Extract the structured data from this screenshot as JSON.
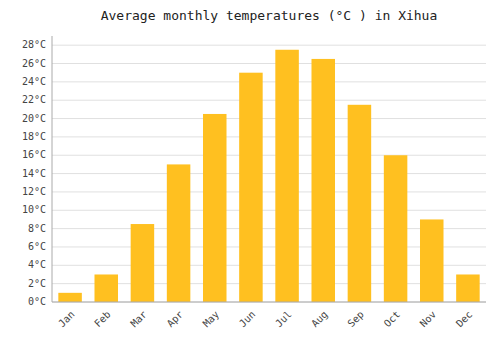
{
  "chart_data": {
    "type": "bar",
    "title": "Average monthly temperatures (°C ) in Xihua",
    "categories": [
      "Jan",
      "Feb",
      "Mar",
      "Apr",
      "May",
      "Jun",
      "Jul",
      "Aug",
      "Sep",
      "Oct",
      "Nov",
      "Dec"
    ],
    "values": [
      1,
      3,
      8.5,
      15,
      20.5,
      25,
      27.5,
      26.5,
      21.5,
      16,
      9,
      3
    ],
    "color": "#FFC020",
    "ylim": [
      0,
      29
    ],
    "yticks": [
      {
        "value": 0,
        "label": "0°C"
      },
      {
        "value": 2,
        "label": "2°C"
      },
      {
        "value": 4,
        "label": "4°C"
      },
      {
        "value": 6,
        "label": "6°C"
      },
      {
        "value": 8,
        "label": "8°C"
      },
      {
        "value": 10,
        "label": "10°C"
      },
      {
        "value": 12,
        "label": "12°C"
      },
      {
        "value": 14,
        "label": "14°C"
      },
      {
        "value": 16,
        "label": "16°C"
      },
      {
        "value": 18,
        "label": "18°C"
      },
      {
        "value": 20,
        "label": "20°C"
      },
      {
        "value": 22,
        "label": "22°C"
      },
      {
        "value": 24,
        "label": "24°C"
      },
      {
        "value": 26,
        "label": "26°C"
      },
      {
        "value": 28,
        "label": "28°C"
      }
    ],
    "grid": true
  }
}
